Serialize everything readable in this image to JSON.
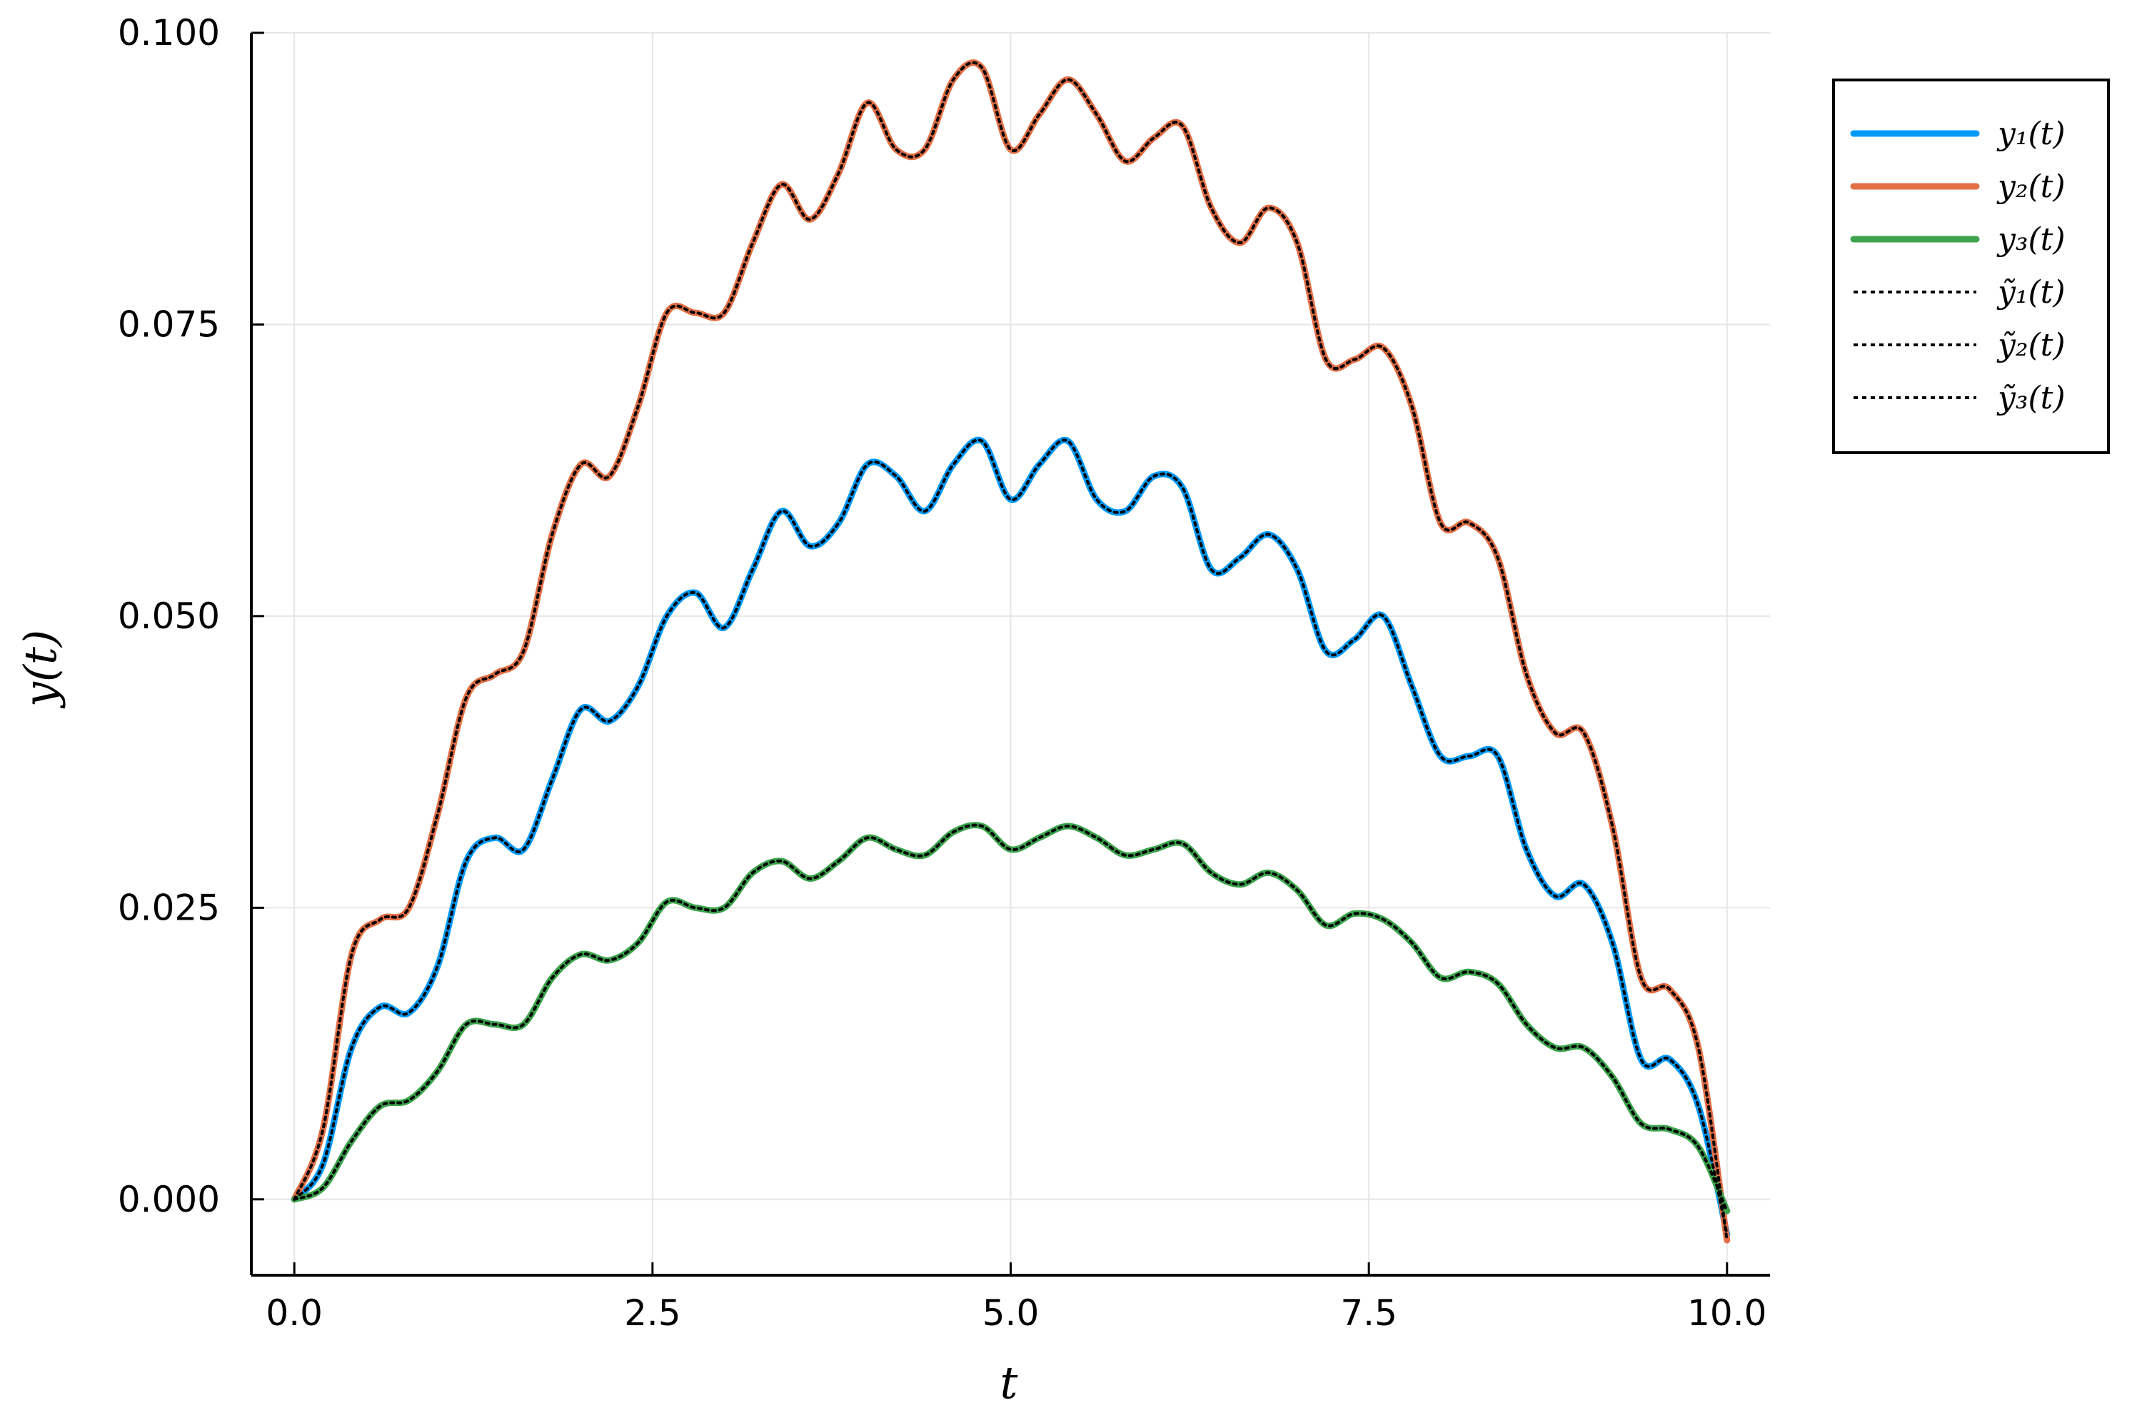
{
  "chart_data": {
    "type": "line",
    "title": "",
    "xlabel": "t",
    "ylabel": "y(t)",
    "xlim": [
      -0.3,
      10.3
    ],
    "ylim": [
      -0.0065,
      0.1
    ],
    "x_ticks": [
      0.0,
      2.5,
      5.0,
      7.5,
      10.0
    ],
    "x_tick_labels": [
      "0.0",
      "2.5",
      "5.0",
      "7.5",
      "10.0"
    ],
    "y_ticks": [
      0.0,
      0.025,
      0.05,
      0.075,
      0.1
    ],
    "y_tick_labels": [
      "0.000",
      "0.025",
      "0.050",
      "0.075",
      "0.100"
    ],
    "grid": true,
    "legend_position": "top-right outside",
    "x": [
      0.0,
      0.2,
      0.4,
      0.6,
      0.8,
      1.0,
      1.2,
      1.4,
      1.6,
      1.8,
      2.0,
      2.2,
      2.4,
      2.6,
      2.8,
      3.0,
      3.2,
      3.4,
      3.6,
      3.8,
      4.0,
      4.2,
      4.4,
      4.6,
      4.8,
      5.0,
      5.2,
      5.4,
      5.6,
      5.8,
      6.0,
      6.2,
      6.4,
      6.6,
      6.8,
      7.0,
      7.2,
      7.4,
      7.6,
      7.8,
      8.0,
      8.2,
      8.4,
      8.6,
      8.8,
      9.0,
      9.2,
      9.4,
      9.6,
      9.8,
      10.0
    ],
    "series": [
      {
        "name": "y₁(t)",
        "color": "#009AFA",
        "values": [
          0.0,
          0.003,
          0.013,
          0.0165,
          0.016,
          0.02,
          0.029,
          0.031,
          0.03,
          0.036,
          0.042,
          0.041,
          0.044,
          0.05,
          0.052,
          0.049,
          0.054,
          0.059,
          0.056,
          0.058,
          0.063,
          0.062,
          0.059,
          0.063,
          0.065,
          0.06,
          0.063,
          0.065,
          0.06,
          0.059,
          0.062,
          0.061,
          0.054,
          0.055,
          0.057,
          0.054,
          0.047,
          0.048,
          0.05,
          0.044,
          0.038,
          0.038,
          0.038,
          0.03,
          0.026,
          0.027,
          0.022,
          0.012,
          0.012,
          0.008,
          -0.003
        ]
      },
      {
        "name": "y₂(t)",
        "color": "#E26F46",
        "values": [
          0.0,
          0.006,
          0.021,
          0.024,
          0.025,
          0.033,
          0.043,
          0.045,
          0.047,
          0.057,
          0.063,
          0.062,
          0.068,
          0.076,
          0.076,
          0.076,
          0.082,
          0.087,
          0.084,
          0.088,
          0.094,
          0.09,
          0.09,
          0.096,
          0.097,
          0.09,
          0.093,
          0.096,
          0.093,
          0.089,
          0.091,
          0.092,
          0.085,
          0.082,
          0.085,
          0.082,
          0.072,
          0.072,
          0.073,
          0.068,
          0.058,
          0.058,
          0.055,
          0.045,
          0.04,
          0.04,
          0.032,
          0.019,
          0.018,
          0.013,
          -0.0035
        ]
      },
      {
        "name": "y₃(t)",
        "color": "#3DA44D",
        "values": [
          0.0,
          0.001,
          0.005,
          0.008,
          0.0085,
          0.011,
          0.015,
          0.015,
          0.015,
          0.019,
          0.021,
          0.0205,
          0.022,
          0.0255,
          0.025,
          0.025,
          0.028,
          0.029,
          0.0275,
          0.029,
          0.031,
          0.03,
          0.0295,
          0.0315,
          0.032,
          0.03,
          0.031,
          0.032,
          0.031,
          0.0295,
          0.03,
          0.0305,
          0.028,
          0.027,
          0.028,
          0.0265,
          0.0235,
          0.0245,
          0.024,
          0.022,
          0.019,
          0.0195,
          0.0185,
          0.015,
          0.013,
          0.013,
          0.0105,
          0.0065,
          0.006,
          0.0045,
          -0.001
        ]
      },
      {
        "name": "ỹ₁(t)",
        "color": "#000000",
        "dashed": true,
        "values": [
          0.0,
          0.003,
          0.013,
          0.0165,
          0.016,
          0.02,
          0.029,
          0.031,
          0.03,
          0.036,
          0.042,
          0.041,
          0.044,
          0.05,
          0.052,
          0.049,
          0.054,
          0.059,
          0.056,
          0.058,
          0.063,
          0.062,
          0.059,
          0.063,
          0.065,
          0.06,
          0.063,
          0.065,
          0.06,
          0.059,
          0.062,
          0.061,
          0.054,
          0.055,
          0.057,
          0.054,
          0.047,
          0.048,
          0.05,
          0.044,
          0.038,
          0.038,
          0.038,
          0.03,
          0.026,
          0.027,
          0.022,
          0.012,
          0.012,
          0.008,
          -0.003
        ]
      },
      {
        "name": "ỹ₂(t)",
        "color": "#000000",
        "dashed": true,
        "values": [
          0.0,
          0.006,
          0.021,
          0.024,
          0.025,
          0.033,
          0.043,
          0.045,
          0.047,
          0.057,
          0.063,
          0.062,
          0.068,
          0.076,
          0.076,
          0.076,
          0.082,
          0.087,
          0.084,
          0.088,
          0.094,
          0.09,
          0.09,
          0.096,
          0.097,
          0.09,
          0.093,
          0.096,
          0.093,
          0.089,
          0.091,
          0.092,
          0.085,
          0.082,
          0.085,
          0.082,
          0.072,
          0.072,
          0.073,
          0.068,
          0.058,
          0.058,
          0.055,
          0.045,
          0.04,
          0.04,
          0.032,
          0.019,
          0.018,
          0.013,
          -0.0035
        ]
      },
      {
        "name": "ỹ₃(t)",
        "color": "#000000",
        "dashed": true,
        "values": [
          0.0,
          0.001,
          0.005,
          0.008,
          0.0085,
          0.011,
          0.015,
          0.015,
          0.015,
          0.019,
          0.021,
          0.0205,
          0.022,
          0.0255,
          0.025,
          0.025,
          0.028,
          0.029,
          0.0275,
          0.029,
          0.031,
          0.03,
          0.0295,
          0.0315,
          0.032,
          0.03,
          0.031,
          0.032,
          0.031,
          0.0295,
          0.03,
          0.0305,
          0.028,
          0.027,
          0.028,
          0.0265,
          0.0235,
          0.0245,
          0.024,
          0.022,
          0.019,
          0.0195,
          0.0185,
          0.015,
          0.013,
          0.013,
          0.0105,
          0.0065,
          0.006,
          0.0045,
          -0.001
        ]
      }
    ]
  }
}
